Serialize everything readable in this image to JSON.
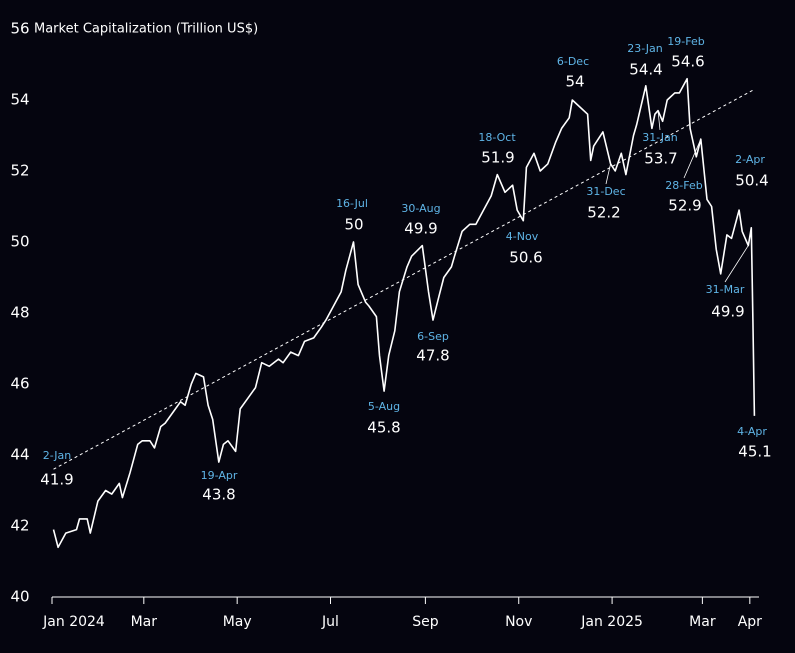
{
  "chart_data": {
    "type": "line",
    "y_label": "Market Capitalization (Trillion US$)",
    "x": [
      "2024-01-02",
      "2024-01-05",
      "2024-01-10",
      "2024-01-17",
      "2024-01-19",
      "2024-01-24",
      "2024-01-26",
      "2024-01-31",
      "2024-02-05",
      "2024-02-09",
      "2024-02-14",
      "2024-02-16",
      "2024-02-21",
      "2024-02-26",
      "2024-02-29",
      "2024-03-05",
      "2024-03-08",
      "2024-03-12",
      "2024-03-15",
      "2024-03-20",
      "2024-03-25",
      "2024-03-28",
      "2024-04-01",
      "2024-04-04",
      "2024-04-09",
      "2024-04-12",
      "2024-04-15",
      "2024-04-19",
      "2024-04-22",
      "2024-04-25",
      "2024-04-30",
      "2024-05-03",
      "2024-05-08",
      "2024-05-13",
      "2024-05-17",
      "2024-05-22",
      "2024-05-28",
      "2024-05-31",
      "2024-06-05",
      "2024-06-10",
      "2024-06-14",
      "2024-06-20",
      "2024-06-25",
      "2024-06-28",
      "2024-07-03",
      "2024-07-08",
      "2024-07-11",
      "2024-07-16",
      "2024-07-19",
      "2024-07-24",
      "2024-07-26",
      "2024-07-31",
      "2024-08-02",
      "2024-08-05",
      "2024-08-08",
      "2024-08-12",
      "2024-08-15",
      "2024-08-20",
      "2024-08-23",
      "2024-08-30",
      "2024-09-03",
      "2024-09-06",
      "2024-09-10",
      "2024-09-13",
      "2024-09-18",
      "2024-09-20",
      "2024-09-25",
      "2024-09-30",
      "2024-10-04",
      "2024-10-09",
      "2024-10-14",
      "2024-10-18",
      "2024-10-23",
      "2024-10-28",
      "2024-10-31",
      "2024-11-04",
      "2024-11-06",
      "2024-11-11",
      "2024-11-15",
      "2024-11-20",
      "2024-11-25",
      "2024-11-29",
      "2024-12-04",
      "2024-12-06",
      "2024-12-11",
      "2024-12-16",
      "2024-12-18",
      "2024-12-20",
      "2024-12-26",
      "2024-12-31",
      "2025-01-03",
      "2025-01-07",
      "2025-01-10",
      "2025-01-15",
      "2025-01-17",
      "2025-01-23",
      "2025-01-27",
      "2025-01-29",
      "2025-01-31",
      "2025-02-03",
      "2025-02-06",
      "2025-02-11",
      "2025-02-14",
      "2025-02-19",
      "2025-02-21",
      "2025-02-25",
      "2025-02-28",
      "2025-03-04",
      "2025-03-07",
      "2025-03-10",
      "2025-03-13",
      "2025-03-17",
      "2025-03-20",
      "2025-03-25",
      "2025-03-27",
      "2025-03-31",
      "2025-04-02",
      "2025-04-03",
      "2025-04-04"
    ],
    "series": [
      {
        "name": "Market Capitalization",
        "color": "#ffffff",
        "values": [
          41.9,
          41.4,
          41.8,
          41.9,
          42.2,
          42.2,
          41.8,
          42.7,
          43.0,
          42.9,
          43.2,
          42.8,
          43.5,
          44.3,
          44.4,
          44.4,
          44.2,
          44.8,
          44.9,
          45.2,
          45.5,
          45.4,
          46.0,
          46.3,
          46.2,
          45.4,
          45.0,
          43.8,
          44.3,
          44.4,
          44.1,
          45.3,
          45.6,
          45.9,
          46.6,
          46.5,
          46.7,
          46.6,
          46.9,
          46.8,
          47.2,
          47.3,
          47.6,
          47.8,
          48.2,
          48.6,
          49.2,
          50.0,
          48.8,
          48.3,
          48.2,
          47.9,
          46.8,
          45.8,
          46.8,
          47.5,
          48.6,
          49.3,
          49.6,
          49.9,
          48.6,
          47.8,
          48.5,
          49.0,
          49.3,
          49.6,
          50.3,
          50.5,
          50.5,
          50.9,
          51.3,
          51.9,
          51.4,
          51.6,
          50.9,
          50.6,
          52.1,
          52.5,
          52.0,
          52.2,
          52.8,
          53.2,
          53.5,
          54.0,
          53.8,
          53.6,
          52.3,
          52.7,
          53.1,
          52.2,
          52.0,
          52.5,
          51.9,
          53.0,
          53.3,
          54.4,
          53.2,
          53.6,
          53.7,
          53.4,
          54.0,
          54.2,
          54.2,
          54.6,
          53.2,
          52.4,
          52.9,
          51.2,
          51.0,
          49.8,
          49.1,
          50.2,
          50.1,
          50.9,
          50.3,
          49.9,
          50.4,
          47.8,
          45.1
        ]
      }
    ],
    "trendline": {
      "x": [
        "2024-01-02",
        "2025-04-04"
      ],
      "values": [
        43.6,
        54.3
      ]
    },
    "annotations": [
      {
        "x": "2024-01-02",
        "label": "2-Jan",
        "value": 41.9
      },
      {
        "x": "2024-04-19",
        "label": "19-Apr",
        "value": 43.8
      },
      {
        "x": "2024-07-16",
        "label": "16-Jul",
        "value": 50.0
      },
      {
        "x": "2024-08-05",
        "label": "5-Aug",
        "value": 45.8
      },
      {
        "x": "2024-08-30",
        "label": "30-Aug",
        "value": 49.9
      },
      {
        "x": "2024-09-06",
        "label": "6-Sep",
        "value": 47.8
      },
      {
        "x": "2024-10-18",
        "label": "18-Oct",
        "value": 51.9
      },
      {
        "x": "2024-11-04",
        "label": "4-Nov",
        "value": 50.6
      },
      {
        "x": "2024-12-06",
        "label": "6-Dec",
        "value": 54.0
      },
      {
        "x": "2024-12-31",
        "label": "31-Dec",
        "value": 52.2
      },
      {
        "x": "2025-01-23",
        "label": "23-Jan",
        "value": 54.4
      },
      {
        "x": "2025-02-19",
        "label": "19-Feb",
        "value": 54.6
      },
      {
        "x": "2025-01-31",
        "label": "31-Jan",
        "value": 53.7
      },
      {
        "x": "2025-02-28",
        "label": "28-Feb",
        "value": 52.9
      },
      {
        "x": "2025-04-02",
        "label": "2-Apr",
        "value": 50.4
      },
      {
        "x": "2025-03-31",
        "label": "31-Mar",
        "value": 49.9
      },
      {
        "x": "2025-04-04",
        "label": "4-Apr",
        "value": 45.1
      }
    ],
    "xlim": [
      "2024-01-01",
      "2025-04-07"
    ],
    "xticks": [
      {
        "value": "2024-01-01",
        "label": "Jan 2024"
      },
      {
        "value": "2024-03-01",
        "label": "Mar"
      },
      {
        "value": "2024-05-01",
        "label": "May"
      },
      {
        "value": "2024-07-01",
        "label": "Jul"
      },
      {
        "value": "2024-09-01",
        "label": "Sep"
      },
      {
        "value": "2024-11-01",
        "label": "Nov"
      },
      {
        "value": "2025-01-01",
        "label": "Jan 2025"
      },
      {
        "value": "2025-03-01",
        "label": "Mar"
      },
      {
        "value": "2025-04-01",
        "label": "Apr"
      }
    ],
    "ylim": [
      40,
      56
    ],
    "yticks": [
      40,
      42,
      44,
      46,
      48,
      50,
      52,
      54,
      56
    ],
    "grid": false
  }
}
